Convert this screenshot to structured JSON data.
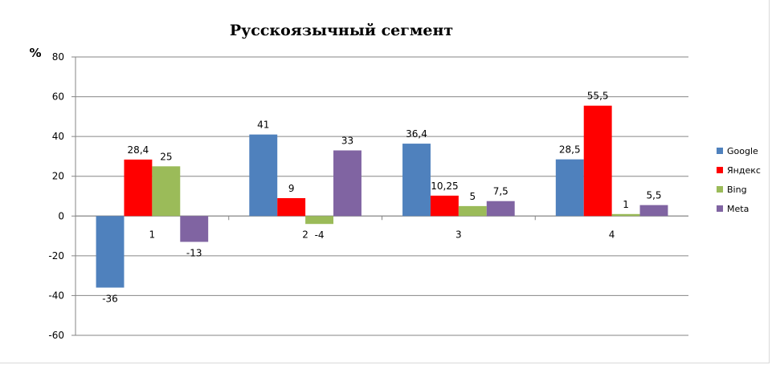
{
  "chart_data": {
    "type": "bar",
    "title": "Русскоязычный  сегмент",
    "xlabel": "",
    "ylabel": "%",
    "ylim": [
      -60,
      80
    ],
    "yticks": [
      80,
      60,
      40,
      20,
      0,
      -20,
      -40,
      -60
    ],
    "categories": [
      "1",
      "2",
      "3",
      "4"
    ],
    "grid": true,
    "legend_position": "right",
    "series": [
      {
        "name": "Google",
        "color": "#4f81bd",
        "values": [
          -36,
          41,
          36.4,
          28.5
        ],
        "labels": [
          "-36",
          "41",
          "36,4",
          "28,5"
        ]
      },
      {
        "name": "Яндекс",
        "color": "#ff0000",
        "values": [
          28.4,
          9,
          10.25,
          55.5
        ],
        "labels": [
          "28,4",
          "9",
          "10,25",
          "55,5"
        ]
      },
      {
        "name": "Bing",
        "color": "#9bbb59",
        "values": [
          25,
          -4,
          5,
          1
        ],
        "labels": [
          "25",
          "-4",
          "5",
          "1"
        ]
      },
      {
        "name": "Meta",
        "color": "#8064a2",
        "values": [
          -13,
          33,
          7.5,
          5.5
        ],
        "labels": [
          "-13",
          "33",
          "7,5",
          "5,5"
        ]
      }
    ]
  }
}
